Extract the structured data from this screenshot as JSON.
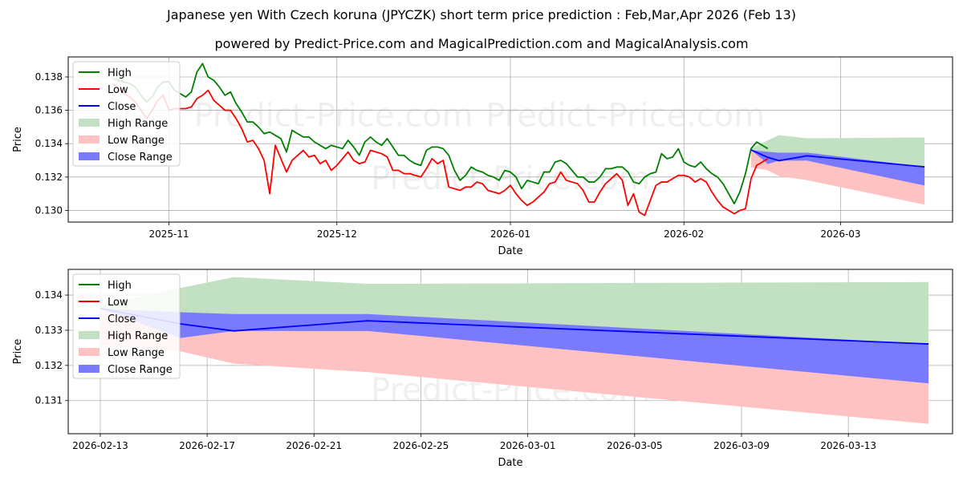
{
  "title": "Japanese yen With Czech koruna (JPYCZK) short term price prediction : Feb,Mar,Apr 2026 (Feb 13)",
  "subtitle": "powered by Predict-Price.com and MagicalPrediction.com and MagicalAnalysis.com",
  "watermark": "Predict-Price.com",
  "colors": {
    "high": "#008000",
    "low": "#ff0000",
    "close": "#0000ff",
    "high_range": "#c2e0c2",
    "low_range": "#ffc2c2",
    "close_range": "#7a7aff"
  },
  "legend": [
    "High",
    "Low",
    "Close",
    "High Range",
    "Low Range",
    "Close Range"
  ],
  "chart_data": [
    {
      "type": "line",
      "xlabel": "Date",
      "ylabel": "Price",
      "xlim": [
        "2025-10-14",
        "2026-03-21"
      ],
      "ylim": [
        0.1293,
        0.1392
      ],
      "x_ticks": [
        "2025-11",
        "2025-12",
        "2026-01",
        "2026-02",
        "2026-03"
      ],
      "y_ticks": [
        "0.130",
        "0.132",
        "0.134",
        "0.136",
        "0.138"
      ],
      "y_tick_values": [
        0.13,
        0.132,
        0.134,
        0.136,
        0.138
      ],
      "x_start": "2025-10-22",
      "x_step_days": 1,
      "series": [
        {
          "name": "High",
          "values": [
            0.1379,
            0.1378,
            0.1377,
            0.1376,
            0.1374,
            0.1369,
            0.1365,
            0.1368,
            0.1374,
            0.1377,
            0.1377,
            0.1372,
            0.137,
            0.1368,
            0.1371,
            0.1383,
            0.1388,
            0.138,
            0.1378,
            0.1374,
            0.1369,
            0.1371,
            0.1364,
            0.1359,
            0.1353,
            0.1353,
            0.135,
            0.1346,
            0.1347,
            0.1345,
            0.1343,
            0.1335,
            0.1348,
            0.1346,
            0.1344,
            0.1344,
            0.1341,
            0.1339,
            0.1337,
            0.1339,
            0.1338,
            0.1337,
            0.1342,
            0.1338,
            0.1333,
            0.1341,
            0.1344,
            0.1341,
            0.1339,
            0.1343,
            0.1338,
            0.1333,
            0.1333,
            0.133,
            0.1328,
            0.1327,
            0.1336,
            0.1338,
            0.1338,
            0.1337,
            0.1333,
            0.1324,
            0.1318,
            0.1321,
            0.1326,
            0.1324,
            0.1323,
            0.1321,
            0.132,
            0.1318,
            0.1324,
            0.1323,
            0.132,
            0.1313,
            0.1318,
            0.1317,
            0.1316,
            0.1323,
            0.1323,
            0.1329,
            0.133,
            0.1328,
            0.1324,
            0.132,
            0.132,
            0.1317,
            0.1317,
            0.132,
            0.1325,
            0.1325,
            0.1326,
            0.1326,
            0.1323,
            0.1317,
            0.1316,
            0.132,
            0.1322,
            0.1323,
            0.1334,
            0.1331,
            0.1332,
            0.1337,
            0.1329,
            0.1327,
            0.1326,
            0.1329,
            0.1325,
            0.1322,
            0.132,
            0.1316,
            0.131,
            0.1304,
            0.1311,
            0.1322,
            0.1337,
            0.1341,
            0.1339,
            0.1337
          ]
        },
        {
          "name": "Low",
          "values": [
            0.1376,
            0.1373,
            0.137,
            0.1368,
            0.1365,
            0.136,
            0.1355,
            0.136,
            0.1366,
            0.1369,
            0.136,
            0.1361,
            0.1361,
            0.1361,
            0.1362,
            0.1367,
            0.1369,
            0.1372,
            0.1366,
            0.1363,
            0.136,
            0.136,
            0.1355,
            0.1349,
            0.1341,
            0.1342,
            0.1337,
            0.133,
            0.131,
            0.1339,
            0.1331,
            0.1323,
            0.133,
            0.1333,
            0.1336,
            0.1332,
            0.1333,
            0.1328,
            0.133,
            0.1324,
            0.1327,
            0.1331,
            0.1335,
            0.133,
            0.1328,
            0.1329,
            0.1336,
            0.1335,
            0.1334,
            0.1332,
            0.1324,
            0.1324,
            0.1322,
            0.1322,
            0.1321,
            0.132,
            0.1325,
            0.1331,
            0.1328,
            0.133,
            0.1314,
            0.1313,
            0.1312,
            0.1314,
            0.1314,
            0.1317,
            0.1316,
            0.1312,
            0.1311,
            0.131,
            0.1312,
            0.1315,
            0.131,
            0.1306,
            0.1303,
            0.1305,
            0.1308,
            0.1311,
            0.1316,
            0.1317,
            0.1323,
            0.1318,
            0.1317,
            0.1316,
            0.1312,
            0.1305,
            0.1305,
            0.1311,
            0.1316,
            0.1319,
            0.1322,
            0.1318,
            0.1303,
            0.131,
            0.1299,
            0.1297,
            0.1306,
            0.1315,
            0.1317,
            0.1317,
            0.1319,
            0.1321,
            0.1321,
            0.132,
            0.1317,
            0.1319,
            0.1317,
            0.1311,
            0.1306,
            0.1302,
            0.13,
            0.1298,
            0.13,
            0.1301,
            0.1319,
            0.1327,
            0.1329,
            0.1331
          ]
        }
      ],
      "forecast": {
        "dates": [
          "2026-02-13",
          "2026-02-16",
          "2026-02-18",
          "2026-02-23",
          "2026-03-16"
        ],
        "close": [
          0.13362,
          0.13318,
          0.13298,
          0.13327,
          0.13261
        ],
        "close_range_upper": [
          0.13362,
          0.13351,
          0.13346,
          0.13346,
          0.13261
        ],
        "close_range_lower": [
          0.13362,
          0.13278,
          0.13298,
          0.13298,
          0.13149
        ],
        "high_range_upper": [
          0.13371,
          0.1342,
          0.13451,
          0.13432,
          0.13437
        ],
        "high_range_lower": [
          0.13362,
          0.13298,
          0.13298,
          0.13298,
          0.13261
        ],
        "low_range_upper": [
          0.13362,
          0.13298,
          0.13298,
          0.13298,
          0.13261
        ],
        "low_range_lower": [
          0.13258,
          0.1324,
          0.13205,
          0.13181,
          0.13034
        ]
      }
    },
    {
      "type": "area",
      "xlabel": "Date",
      "ylabel": "Price",
      "xlim": [
        "2026-02-11.8",
        "2026-03-16.9"
      ],
      "ylim": [
        0.13006,
        0.13473
      ],
      "x_ticks": [
        "2026-02-13",
        "2026-02-17",
        "2026-02-21",
        "2026-02-25",
        "2026-03-01",
        "2026-03-05",
        "2026-03-09",
        "2026-03-13"
      ],
      "y_ticks": [
        "0.131",
        "0.132",
        "0.133",
        "0.134"
      ],
      "y_tick_values": [
        0.131,
        0.132,
        0.133,
        0.134
      ],
      "forecast": {
        "dates": [
          "2026-02-13",
          "2026-02-16",
          "2026-02-18",
          "2026-02-23",
          "2026-03-16"
        ],
        "close": [
          0.13362,
          0.13318,
          0.13298,
          0.13327,
          0.13261
        ],
        "close_range_upper": [
          0.13362,
          0.13351,
          0.13346,
          0.13346,
          0.13261
        ],
        "close_range_lower": [
          0.13362,
          0.13278,
          0.13298,
          0.13298,
          0.13149
        ],
        "high_range_upper": [
          0.13371,
          0.1342,
          0.13451,
          0.13432,
          0.13437
        ],
        "high_range_lower": [
          0.13362,
          0.13298,
          0.13298,
          0.13298,
          0.13261
        ],
        "low_range_upper": [
          0.13362,
          0.13298,
          0.13298,
          0.13298,
          0.13261
        ],
        "low_range_lower": [
          0.13258,
          0.1324,
          0.13205,
          0.13181,
          0.13034
        ]
      }
    }
  ]
}
